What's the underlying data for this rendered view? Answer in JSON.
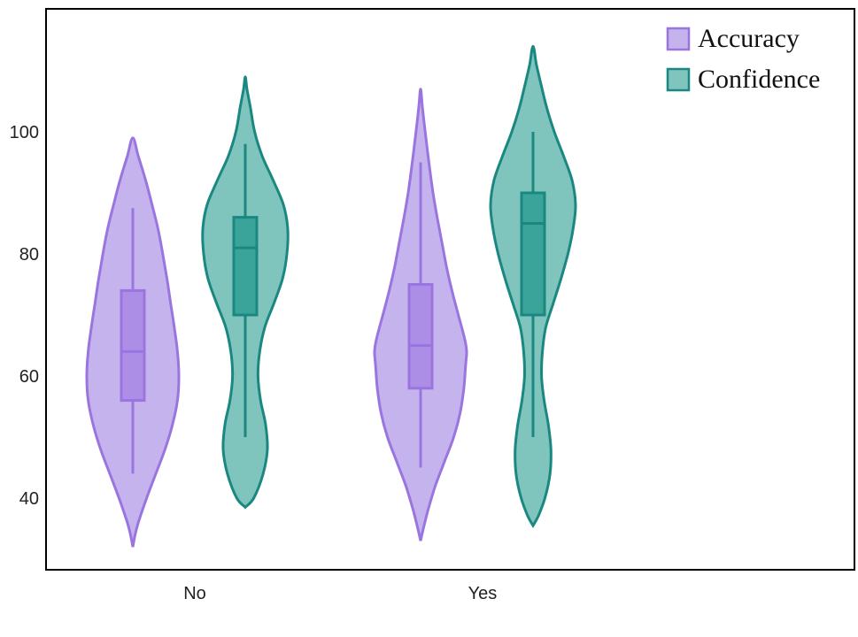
{
  "chart_data": {
    "type": "violin",
    "title": "",
    "xlabel": "",
    "ylabel": "",
    "categories": [
      "No",
      "Yes"
    ],
    "ylim": [
      31,
      118
    ],
    "yticks": [
      40,
      60,
      80,
      100
    ],
    "grid": false,
    "legend_position": "top-right",
    "series": [
      {
        "name": "Accuracy",
        "fill": "#c5b3ee",
        "stroke": "#9a75df",
        "box_fill": "#ac8ee6",
        "groups": [
          {
            "category": "No",
            "min": 32,
            "max": 99,
            "whisker_low": 44,
            "q1": 56,
            "median": 64,
            "q3": 74,
            "whisker_high": 87.5,
            "density_profile": [
              [
                32,
                0.0
              ],
              [
                34,
                0.05
              ],
              [
                36,
                0.12
              ],
              [
                40,
                0.3
              ],
              [
                44,
                0.5
              ],
              [
                48,
                0.7
              ],
              [
                52,
                0.86
              ],
              [
                56,
                0.97
              ],
              [
                60,
                1.0
              ],
              [
                64,
                0.97
              ],
              [
                68,
                0.9
              ],
              [
                72,
                0.82
              ],
              [
                76,
                0.74
              ],
              [
                80,
                0.65
              ],
              [
                84,
                0.55
              ],
              [
                88,
                0.42
              ],
              [
                92,
                0.28
              ],
              [
                96,
                0.12
              ],
              [
                99,
                0.0
              ]
            ]
          },
          {
            "category": "Yes",
            "min": 33,
            "max": 107,
            "whisker_low": 45,
            "q1": 58,
            "median": 65,
            "q3": 75,
            "whisker_high": 95,
            "density_profile": [
              [
                33,
                0.0
              ],
              [
                35,
                0.06
              ],
              [
                38,
                0.16
              ],
              [
                42,
                0.32
              ],
              [
                46,
                0.52
              ],
              [
                50,
                0.72
              ],
              [
                54,
                0.86
              ],
              [
                58,
                0.94
              ],
              [
                62,
                0.98
              ],
              [
                64,
                1.0
              ],
              [
                66,
                0.96
              ],
              [
                70,
                0.82
              ],
              [
                74,
                0.68
              ],
              [
                78,
                0.56
              ],
              [
                82,
                0.46
              ],
              [
                86,
                0.36
              ],
              [
                90,
                0.27
              ],
              [
                95,
                0.18
              ],
              [
                100,
                0.1
              ],
              [
                104,
                0.04
              ],
              [
                107,
                0.0
              ]
            ]
          }
        ]
      },
      {
        "name": "Confidence",
        "fill": "#7fc4bd",
        "stroke": "#1a8880",
        "box_fill": "#3aa39a",
        "groups": [
          {
            "category": "No",
            "min": 38.5,
            "max": 109,
            "whisker_low": 50,
            "q1": 70,
            "median": 81,
            "q3": 86,
            "whisker_high": 98,
            "density_profile": [
              [
                38.5,
                0.0
              ],
              [
                40,
                0.2
              ],
              [
                44,
                0.42
              ],
              [
                48,
                0.52
              ],
              [
                52,
                0.48
              ],
              [
                56,
                0.36
              ],
              [
                60,
                0.3
              ],
              [
                64,
                0.34
              ],
              [
                68,
                0.46
              ],
              [
                72,
                0.68
              ],
              [
                76,
                0.88
              ],
              [
                80,
                0.98
              ],
              [
                84,
                1.0
              ],
              [
                88,
                0.9
              ],
              [
                92,
                0.66
              ],
              [
                96,
                0.4
              ],
              [
                100,
                0.22
              ],
              [
                104,
                0.12
              ],
              [
                107,
                0.04
              ],
              [
                109,
                0.0
              ]
            ]
          },
          {
            "category": "Yes",
            "min": 35.5,
            "max": 114,
            "whisker_low": 50,
            "q1": 70,
            "median": 85,
            "q3": 90,
            "whisker_high": 100,
            "density_profile": [
              [
                35.5,
                0.0
              ],
              [
                37,
                0.12
              ],
              [
                40,
                0.28
              ],
              [
                44,
                0.4
              ],
              [
                48,
                0.42
              ],
              [
                52,
                0.36
              ],
              [
                56,
                0.26
              ],
              [
                60,
                0.2
              ],
              [
                64,
                0.22
              ],
              [
                68,
                0.3
              ],
              [
                72,
                0.48
              ],
              [
                76,
                0.66
              ],
              [
                80,
                0.82
              ],
              [
                84,
                0.94
              ],
              [
                88,
                1.0
              ],
              [
                92,
                0.92
              ],
              [
                96,
                0.72
              ],
              [
                100,
                0.5
              ],
              [
                104,
                0.32
              ],
              [
                108,
                0.18
              ],
              [
                111,
                0.08
              ],
              [
                114,
                0.0
              ]
            ]
          }
        ]
      }
    ]
  }
}
